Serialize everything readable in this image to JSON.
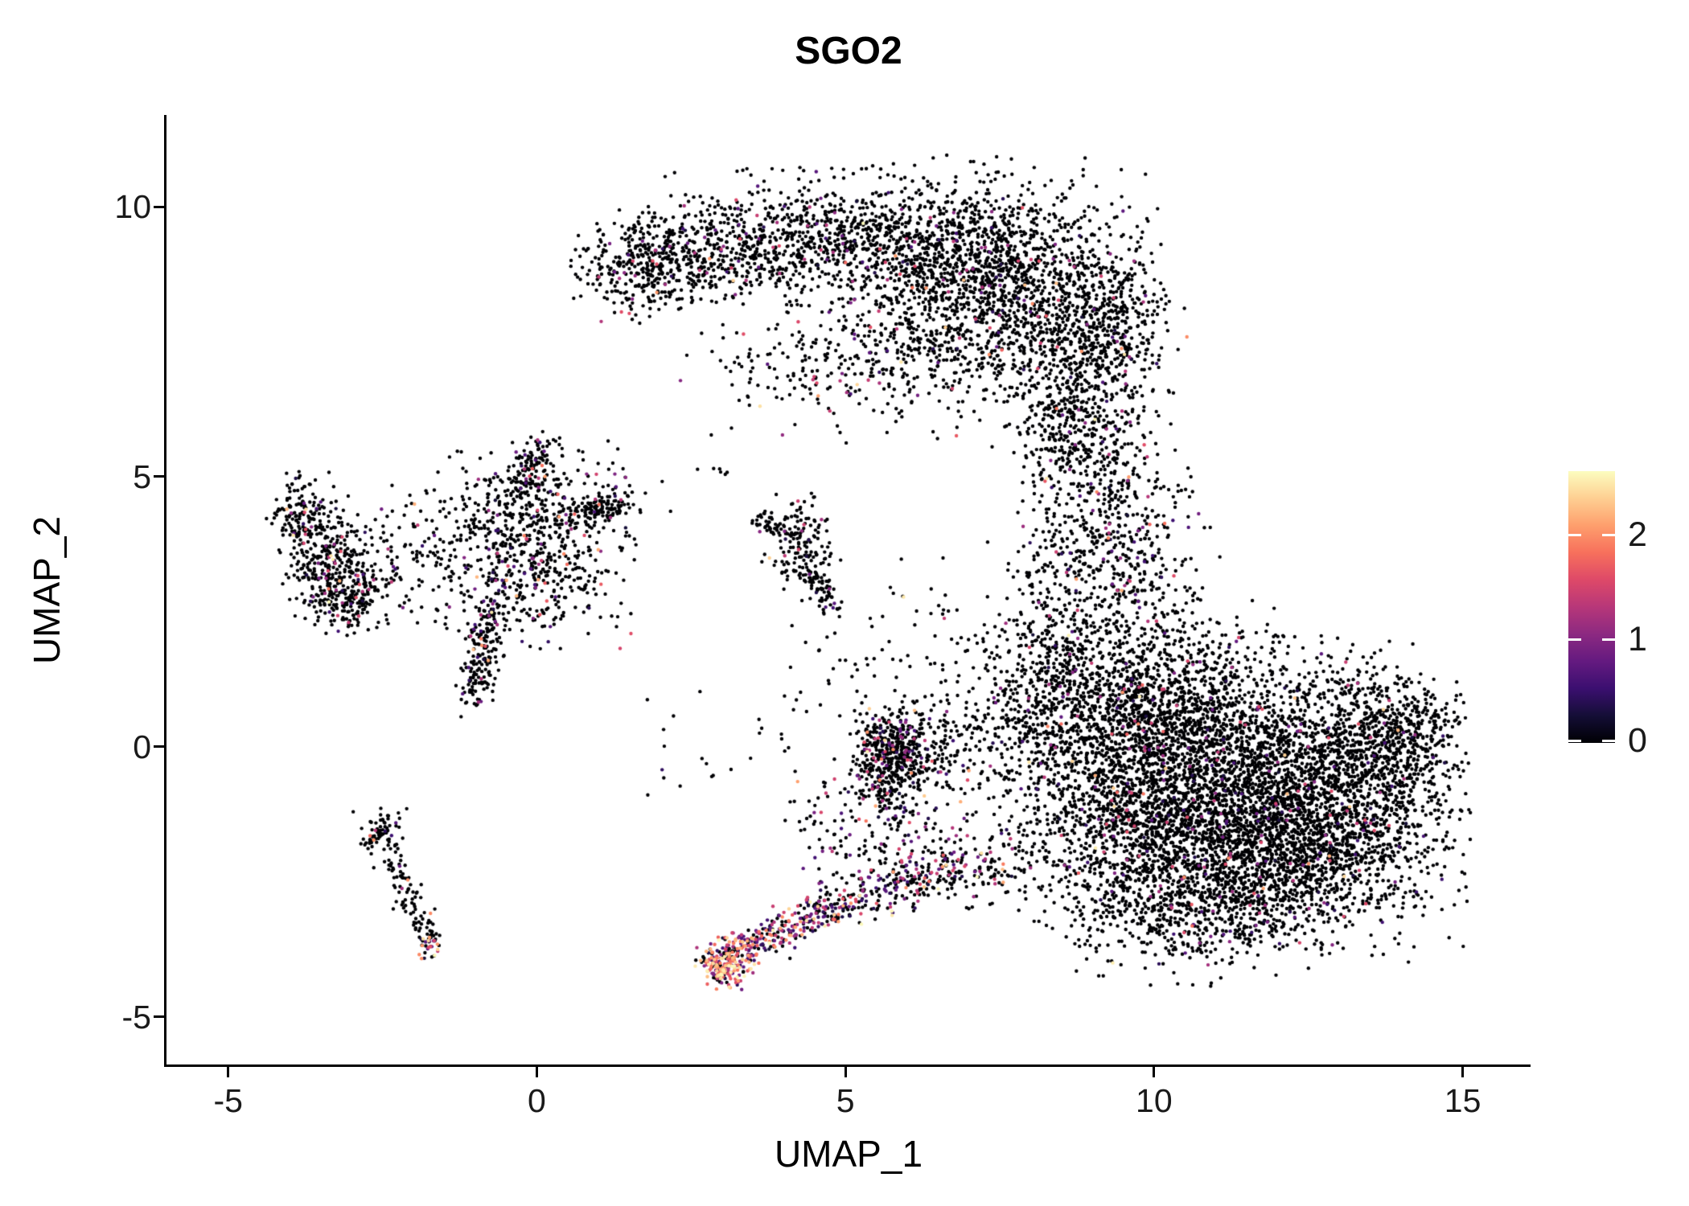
{
  "title": "SGO2",
  "chart_data": {
    "type": "scatter",
    "title": "SGO2",
    "xlabel": "UMAP_1",
    "ylabel": "UMAP_2",
    "xlim": [
      -6,
      16.1
    ],
    "ylim": [
      -5.9,
      11.7
    ],
    "x_ticks": [
      -5,
      0,
      5,
      10,
      15
    ],
    "y_ticks": [
      -5,
      0,
      5,
      10
    ],
    "grid": false,
    "legend_position": "right",
    "legend": {
      "ticks": [
        0,
        1,
        2
      ],
      "vmin": 0,
      "vmax": 2.6
    },
    "colormap": {
      "name": "magma",
      "stops": [
        [
          0.0,
          "#000004"
        ],
        [
          0.1,
          "#140e36"
        ],
        [
          0.2,
          "#3b0f70"
        ],
        [
          0.3,
          "#641a80"
        ],
        [
          0.4,
          "#8c2981"
        ],
        [
          0.5,
          "#b73779"
        ],
        [
          0.6,
          "#de4968"
        ],
        [
          0.7,
          "#f7705c"
        ],
        [
          0.8,
          "#fe9f6d"
        ],
        [
          0.9,
          "#fecf92"
        ],
        [
          1.0,
          "#fcfdbf"
        ]
      ]
    },
    "point_radius": 2.2,
    "seed": 20240,
    "density_model": "gaussian_mixture",
    "clusters": [
      {
        "name": "top-crescent-band-left",
        "shape": "gauss",
        "cx": 5.0,
        "cy": 9.4,
        "sx": 1.3,
        "sy": 0.55,
        "n": 900,
        "p_low": 0.05,
        "p_high": 0.006
      },
      {
        "name": "top-crescent-core-right",
        "shape": "gauss",
        "cx": 7.4,
        "cy": 8.6,
        "sx": 1.1,
        "sy": 0.95,
        "n": 1500,
        "p_low": 0.05,
        "p_high": 0.006
      },
      {
        "name": "top-crescent-arm",
        "shape": "gauss",
        "cx": 2.7,
        "cy": 9.1,
        "sx": 0.8,
        "sy": 0.45,
        "n": 350,
        "p_low": 0.05,
        "p_high": 0.006
      },
      {
        "name": "top-crescent-arm-tip",
        "shape": "gauss",
        "cx": 1.6,
        "cy": 8.9,
        "sx": 0.45,
        "sy": 0.45,
        "n": 260,
        "p_low": 0.05,
        "p_high": 0.006
      },
      {
        "name": "top-right-lobe",
        "shape": "gauss",
        "cx": 8.8,
        "cy": 6.8,
        "sx": 0.6,
        "sy": 0.85,
        "n": 450,
        "p_low": 0.05,
        "p_high": 0.008
      },
      {
        "name": "top-right-edge",
        "shape": "gauss",
        "cx": 9.3,
        "cy": 7.9,
        "sx": 0.5,
        "sy": 0.7,
        "n": 300,
        "p_low": 0.05,
        "p_high": 0.006
      },
      {
        "name": "top-interior-sparse",
        "shape": "gauss",
        "cx": 6.0,
        "cy": 7.3,
        "sx": 1.2,
        "sy": 0.7,
        "n": 260,
        "p_low": 0.05,
        "p_high": 0.006
      },
      {
        "name": "top-interior-sparse-2",
        "shape": "gauss",
        "cx": 4.4,
        "cy": 7.0,
        "sx": 0.9,
        "sy": 0.55,
        "n": 120,
        "p_low": 0.05,
        "p_high": 0.006
      },
      {
        "name": "top-bottom-bridge",
        "shape": "gauss",
        "cx": 8.5,
        "cy": 5.6,
        "sx": 0.5,
        "sy": 0.45,
        "n": 130,
        "p_low": 0.05,
        "p_high": 0.01
      },
      {
        "name": "connector-scatter-upper",
        "shape": "gauss",
        "cx": 9.2,
        "cy": 4.2,
        "sx": 0.6,
        "sy": 0.9,
        "n": 420,
        "p_low": 0.05,
        "p_high": 0.01
      },
      {
        "name": "connector-scatter-lower",
        "shape": "gauss",
        "cx": 8.6,
        "cy": 2.4,
        "sx": 0.55,
        "sy": 0.8,
        "n": 220,
        "p_low": 0.05,
        "p_high": 0.01
      },
      {
        "name": "connector-scatter-right",
        "shape": "gauss",
        "cx": 9.9,
        "cy": 3.1,
        "sx": 0.5,
        "sy": 1.0,
        "n": 150,
        "p_low": 0.05,
        "p_high": 0.01
      },
      {
        "name": "right-cluster-core",
        "shape": "gauss",
        "cx": 11.3,
        "cy": -0.6,
        "sx": 1.5,
        "sy": 1.1,
        "n": 2600,
        "p_low": 0.035,
        "p_high": 0.004
      },
      {
        "name": "right-cluster-lower",
        "shape": "gauss",
        "cx": 11.8,
        "cy": -2.0,
        "sx": 1.4,
        "sy": 0.8,
        "n": 1800,
        "p_low": 0.035,
        "p_high": 0.004
      },
      {
        "name": "right-cluster-upper",
        "shape": "gauss",
        "cx": 10.0,
        "cy": 0.8,
        "sx": 1.0,
        "sy": 0.8,
        "n": 1000,
        "p_low": 0.04,
        "p_high": 0.005
      },
      {
        "name": "right-cluster-east",
        "shape": "gauss",
        "cx": 13.2,
        "cy": -0.3,
        "sx": 0.8,
        "sy": 0.9,
        "n": 700,
        "p_low": 0.03,
        "p_high": 0.003
      },
      {
        "name": "right-cluster-west",
        "shape": "gauss",
        "cx": 9.3,
        "cy": -1.5,
        "sx": 0.8,
        "sy": 0.9,
        "n": 500,
        "p_low": 0.04,
        "p_high": 0.005
      },
      {
        "name": "right-cluster-east-tip",
        "shape": "gauss",
        "cx": 14.0,
        "cy": 0.2,
        "sx": 0.45,
        "sy": 0.5,
        "n": 300,
        "p_low": 0.03,
        "p_high": 0.003
      },
      {
        "name": "right-cluster-bottom-edge",
        "shape": "gauss",
        "cx": 10.6,
        "cy": -3.2,
        "sx": 0.9,
        "sy": 0.5,
        "n": 350,
        "p_low": 0.035,
        "p_high": 0.004
      },
      {
        "name": "right-cluster-northwest",
        "shape": "gauss",
        "cx": 8.7,
        "cy": 0.5,
        "sx": 0.6,
        "sy": 0.8,
        "n": 250,
        "p_low": 0.04,
        "p_high": 0.006
      },
      {
        "name": "right-cluster-west-sparse",
        "shape": "gauss",
        "cx": 7.8,
        "cy": 1.2,
        "sx": 0.6,
        "sy": 0.7,
        "n": 180,
        "p_low": 0.04,
        "p_high": 0.006
      },
      {
        "name": "right-cluster-isthmus",
        "shape": "gauss",
        "cx": 7.3,
        "cy": 0.0,
        "sx": 0.5,
        "sy": 0.6,
        "n": 120,
        "p_low": 0.05,
        "p_high": 0.008
      },
      {
        "name": "far-left-knot-top",
        "shape": "gauss",
        "cx": -3.8,
        "cy": 4.2,
        "sx": 0.25,
        "sy": 0.4,
        "n": 180,
        "p_low": 0.09,
        "p_high": 0.02
      },
      {
        "name": "far-left-knot-mid",
        "shape": "gauss",
        "cx": -3.3,
        "cy": 3.3,
        "sx": 0.35,
        "sy": 0.5,
        "n": 260,
        "p_low": 0.09,
        "p_high": 0.02
      },
      {
        "name": "far-left-knot-bottom",
        "shape": "gauss",
        "cx": -3.0,
        "cy": 2.8,
        "sx": 0.3,
        "sy": 0.3,
        "n": 140,
        "p_low": 0.09,
        "p_high": 0.02
      },
      {
        "name": "left-bridge-sparse",
        "shape": "gauss",
        "cx": -2.2,
        "cy": 3.6,
        "sx": 0.45,
        "sy": 0.6,
        "n": 110,
        "p_low": 0.07,
        "p_high": 0.015
      },
      {
        "name": "left-central-core",
        "shape": "gauss",
        "cx": -0.2,
        "cy": 3.6,
        "sx": 0.75,
        "sy": 0.75,
        "n": 650,
        "p_low": 0.09,
        "p_high": 0.025
      },
      {
        "name": "left-central-north-strand",
        "shape": "line",
        "x1": -0.3,
        "y1": 4.6,
        "x2": 0.1,
        "y2": 5.6,
        "jitter": 0.15,
        "n": 110,
        "p_low": 0.07,
        "p_high": 0.015
      },
      {
        "name": "left-central-south-strand",
        "shape": "line",
        "x1": -0.75,
        "y1": 2.6,
        "x2": -1.0,
        "y2": 0.9,
        "jitter": 0.15,
        "n": 200,
        "p_low": 0.09,
        "p_high": 0.03
      },
      {
        "name": "left-central-east-strand",
        "shape": "line",
        "x1": 0.5,
        "y1": 4.3,
        "x2": 1.5,
        "y2": 4.55,
        "jitter": 0.12,
        "n": 120,
        "p_low": 0.08,
        "p_high": 0.02
      },
      {
        "name": "left-central-upper-sparse",
        "shape": "gauss",
        "cx": 0.3,
        "cy": 4.8,
        "sx": 0.8,
        "sy": 0.5,
        "n": 90,
        "p_low": 0.07,
        "p_high": 0.015
      },
      {
        "name": "mid-small-cluster",
        "shape": "gauss",
        "cx": 4.25,
        "cy": 3.7,
        "sx": 0.3,
        "sy": 0.45,
        "n": 150,
        "p_low": 0.05,
        "p_high": 0.01
      },
      {
        "name": "mid-small-west-arm",
        "shape": "line",
        "x1": 3.6,
        "y1": 4.25,
        "x2": 4.1,
        "y2": 3.9,
        "jitter": 0.08,
        "n": 45,
        "p_low": 0.05,
        "p_high": 0.01
      },
      {
        "name": "mid-small-south-arm",
        "shape": "line",
        "x1": 4.4,
        "y1": 3.3,
        "x2": 4.85,
        "y2": 2.55,
        "jitter": 0.1,
        "n": 70,
        "p_low": 0.05,
        "p_high": 0.01
      },
      {
        "name": "center-blob",
        "shape": "gauss",
        "cx": 5.7,
        "cy": -0.1,
        "sx": 0.28,
        "sy": 0.42,
        "n": 420,
        "p_low": 0.12,
        "p_high": 0.025
      },
      {
        "name": "center-blob-east-sparse",
        "shape": "gauss",
        "cx": 6.4,
        "cy": 0.0,
        "sx": 0.35,
        "sy": 0.45,
        "n": 110,
        "p_low": 0.08,
        "p_high": 0.015
      },
      {
        "name": "center-blob-tail",
        "shape": "line",
        "x1": 5.5,
        "y1": -0.6,
        "x2": 5.9,
        "y2": -1.5,
        "jitter": 0.15,
        "n": 50,
        "p_low": 0.15,
        "p_high": 0.03
      },
      {
        "name": "lower-left-strand",
        "shape": "line",
        "x1": -2.6,
        "y1": -1.5,
        "x2": -1.7,
        "y2": -3.7,
        "jitter": 0.13,
        "n": 120,
        "p_low": 0.04,
        "p_high": 0.01
      },
      {
        "name": "lower-left-strand-branch",
        "shape": "line",
        "x1": -2.85,
        "y1": -1.8,
        "x2": -2.45,
        "y2": -1.55,
        "jitter": 0.08,
        "n": 30,
        "p_low": 0.04,
        "p_high": 0.01
      },
      {
        "name": "lower-left-strand-tip",
        "shape": "gauss",
        "cx": -1.72,
        "cy": -3.72,
        "sx": 0.1,
        "sy": 0.14,
        "n": 28,
        "p_low": 0.3,
        "p_high": 0.22
      },
      {
        "name": "lower-left-strand-top-sparse",
        "shape": "gauss",
        "cx": -2.5,
        "cy": -1.35,
        "sx": 0.2,
        "sy": 0.15,
        "n": 25,
        "p_low": 0.04,
        "p_high": 0.01
      },
      {
        "name": "hot-tail-head",
        "shape": "gauss",
        "cx": 3.08,
        "cy": -3.95,
        "sx": 0.22,
        "sy": 0.22,
        "n": 200,
        "p_low": 0.35,
        "p_high": 0.45
      },
      {
        "name": "hot-tail-head-bright",
        "shape": "gauss",
        "cx": 3.0,
        "cy": -4.15,
        "sx": 0.12,
        "sy": 0.1,
        "n": 60,
        "p_low": 0.25,
        "p_high": 0.6
      },
      {
        "name": "hot-tail-mid",
        "shape": "line",
        "x1": 3.35,
        "y1": -3.7,
        "x2": 4.9,
        "y2": -2.95,
        "jitter": 0.18,
        "n": 240,
        "p_low": 0.45,
        "p_high": 0.18
      },
      {
        "name": "hot-tail-east",
        "shape": "line",
        "x1": 4.9,
        "y1": -2.95,
        "x2": 6.8,
        "y2": -2.3,
        "jitter": 0.22,
        "n": 200,
        "p_low": 0.35,
        "p_high": 0.08
      },
      {
        "name": "tail-upper-scatter",
        "shape": "gauss",
        "cx": 5.8,
        "cy": -1.9,
        "sx": 0.7,
        "sy": 0.45,
        "n": 130,
        "p_low": 0.3,
        "p_high": 0.04
      },
      {
        "name": "tail-join-scatter",
        "shape": "gauss",
        "cx": 7.3,
        "cy": -2.2,
        "sx": 0.5,
        "sy": 0.4,
        "n": 140,
        "p_low": 0.15,
        "p_high": 0.02
      },
      {
        "name": "tail-center-sparse",
        "shape": "gauss",
        "cx": 5.2,
        "cy": -1.2,
        "sx": 0.5,
        "sy": 0.4,
        "n": 60,
        "p_low": 0.2,
        "p_high": 0.03
      },
      {
        "name": "mid-sparse-1",
        "shape": "gauss",
        "cx": 6.3,
        "cy": 1.8,
        "sx": 1.0,
        "sy": 0.9,
        "n": 50,
        "p_low": 0.06,
        "p_high": 0.01
      },
      {
        "name": "mid-sparse-2",
        "shape": "gauss",
        "cx": 3.2,
        "cy": 0.3,
        "sx": 0.8,
        "sy": 0.8,
        "n": 18,
        "p_low": 0.06,
        "p_high": 0.01
      },
      {
        "name": "mid-sparse-3",
        "shape": "gauss",
        "cx": 2.0,
        "cy": -0.6,
        "sx": 0.4,
        "sy": 0.4,
        "n": 8,
        "p_low": 0.05,
        "p_high": 0.0
      },
      {
        "name": "mid-sparse-4",
        "shape": "gauss",
        "cx": 5.0,
        "cy": 1.5,
        "sx": 0.5,
        "sy": 0.8,
        "n": 25,
        "p_low": 0.06,
        "p_high": 0.01
      },
      {
        "name": "mid-sparse-5",
        "shape": "gauss",
        "cx": 2.7,
        "cy": 5.1,
        "sx": 0.3,
        "sy": 0.2,
        "n": 6,
        "p_low": 0.05,
        "p_high": 0.0
      }
    ]
  }
}
